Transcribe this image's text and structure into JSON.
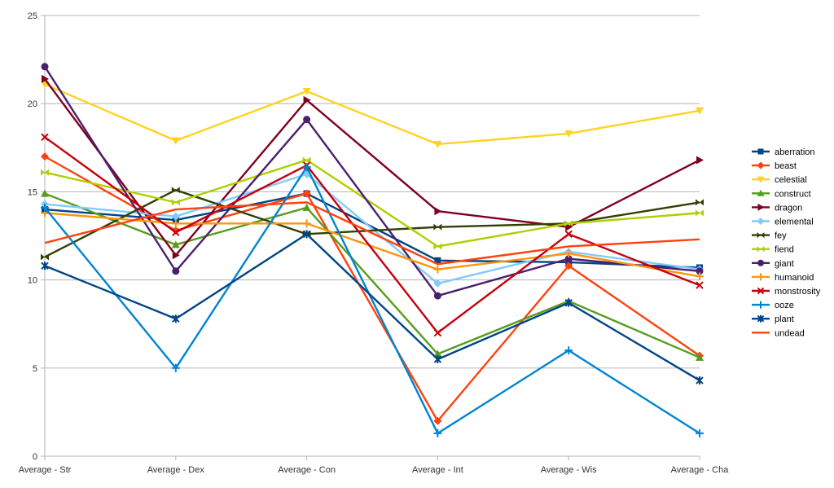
{
  "chart_data": {
    "type": "line",
    "title": "",
    "xlabel": "",
    "ylabel": "",
    "categories": [
      "Average - Str",
      "Average - Dex",
      "Average - Con",
      "Average - Int",
      "Average - Wis",
      "Average - Cha"
    ],
    "ylim": [
      0,
      25
    ],
    "y_ticks": [
      0,
      5,
      10,
      15,
      20,
      25
    ],
    "grid": true,
    "legend_position": "right",
    "series": [
      {
        "name": "aberration",
        "color": "#004586",
        "marker": "square",
        "values": [
          14.0,
          13.4,
          14.9,
          11.1,
          11.0,
          10.7
        ]
      },
      {
        "name": "beast",
        "color": "#ff420e",
        "marker": "diamond",
        "values": [
          17.0,
          12.8,
          14.9,
          2.0,
          10.8,
          5.7
        ]
      },
      {
        "name": "celestial",
        "color": "#ffd320",
        "marker": "triangle-down",
        "values": [
          21.1,
          17.9,
          20.7,
          17.7,
          18.3,
          19.6
        ]
      },
      {
        "name": "construct",
        "color": "#579d1c",
        "marker": "triangle-up",
        "values": [
          14.9,
          12.0,
          14.1,
          5.8,
          8.8,
          5.6
        ]
      },
      {
        "name": "dragon",
        "color": "#7e0021",
        "marker": "triangle-right",
        "values": [
          21.4,
          11.4,
          20.2,
          13.9,
          13.0,
          16.8
        ]
      },
      {
        "name": "elemental",
        "color": "#83caff",
        "marker": "diamond",
        "values": [
          14.3,
          13.6,
          16.0,
          9.8,
          11.6,
          10.6
        ]
      },
      {
        "name": "fey",
        "color": "#314004",
        "marker": "bowtie",
        "values": [
          11.3,
          15.1,
          12.6,
          13.0,
          13.2,
          14.4
        ]
      },
      {
        "name": "fiend",
        "color": "#aecf00",
        "marker": "bowtie",
        "values": [
          16.1,
          14.4,
          16.8,
          11.9,
          13.2,
          13.8
        ]
      },
      {
        "name": "giant",
        "color": "#4b1f6f",
        "marker": "circle",
        "values": [
          22.1,
          10.5,
          19.1,
          9.1,
          11.2,
          10.5
        ]
      },
      {
        "name": "humanoid",
        "color": "#ff950e",
        "marker": "plus",
        "values": [
          13.8,
          13.2,
          13.2,
          10.6,
          11.5,
          10.2
        ]
      },
      {
        "name": "monstrosity",
        "color": "#c5000b",
        "marker": "x",
        "values": [
          18.1,
          12.7,
          16.5,
          7.0,
          12.6,
          9.7
        ]
      },
      {
        "name": "ooze",
        "color": "#0084d1",
        "marker": "plus",
        "values": [
          14.1,
          5.0,
          16.4,
          1.3,
          6.0,
          1.3
        ]
      },
      {
        "name": "plant",
        "color": "#004586",
        "marker": "star",
        "values": [
          10.8,
          7.8,
          12.6,
          5.5,
          8.7,
          4.3
        ]
      },
      {
        "name": "undead",
        "color": "#ff420e",
        "marker": "none",
        "values": [
          12.1,
          14.0,
          14.4,
          10.9,
          11.9,
          12.3
        ]
      }
    ]
  }
}
